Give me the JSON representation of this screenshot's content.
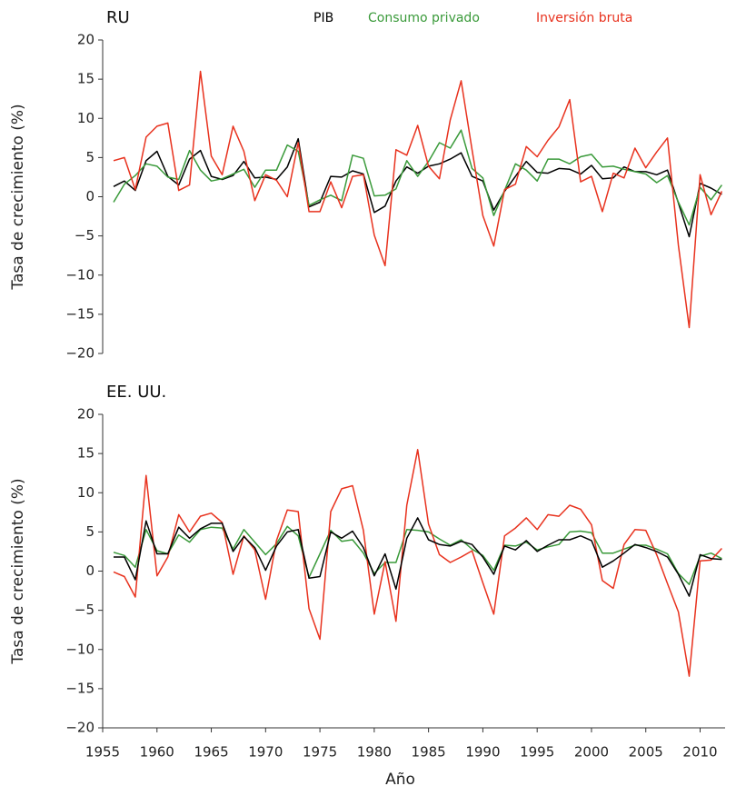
{
  "chart_data": [
    {
      "type": "line",
      "title": "RU",
      "ylabel": "Tasa de crecimiento (%)",
      "x": [
        1956,
        1957,
        1958,
        1959,
        1960,
        1961,
        1962,
        1963,
        1964,
        1965,
        1966,
        1967,
        1968,
        1969,
        1970,
        1971,
        1972,
        1973,
        1974,
        1975,
        1976,
        1977,
        1978,
        1979,
        1980,
        1981,
        1982,
        1983,
        1984,
        1985,
        1986,
        1987,
        1988,
        1989,
        1990,
        1991,
        1992,
        1993,
        1994,
        1995,
        1996,
        1997,
        1998,
        1999,
        2000,
        2001,
        2002,
        2003,
        2004,
        2005,
        2006,
        2007,
        2008,
        2009,
        2010,
        2011,
        2012
      ],
      "series": [
        {
          "name": "PIB",
          "color": "#000000",
          "values": [
            1.3,
            2.0,
            0.8,
            4.6,
            5.8,
            2.6,
            1.5,
            4.8,
            5.9,
            2.6,
            2.2,
            2.7,
            4.5,
            2.4,
            2.5,
            2.2,
            3.8,
            7.4,
            -1.3,
            -0.7,
            2.6,
            2.5,
            3.3,
            2.9,
            -2.0,
            -1.2,
            2.0,
            3.8,
            3.0,
            3.9,
            4.2,
            4.8,
            5.6,
            2.6,
            2.0,
            -1.7,
            0.7,
            2.6,
            4.5,
            3.1,
            3.0,
            3.6,
            3.5,
            2.9,
            4.0,
            2.3,
            2.4,
            3.8,
            3.2,
            3.2,
            2.8,
            3.4,
            -0.8,
            -5.1,
            1.7,
            1.1,
            0.3
          ]
        },
        {
          "name": "Consumo privado",
          "color": "#3a9a3a",
          "values": [
            -0.7,
            1.6,
            2.7,
            4.2,
            3.9,
            2.5,
            2.2,
            5.9,
            3.4,
            2.0,
            2.3,
            2.9,
            3.5,
            1.2,
            3.4,
            3.4,
            6.6,
            5.8,
            -1.1,
            -0.4,
            0.2,
            -0.5,
            5.3,
            4.9,
            0.1,
            0.2,
            1.0,
            4.6,
            2.6,
            4.5,
            6.9,
            6.2,
            8.5,
            3.6,
            2.4,
            -2.4,
            0.8,
            4.2,
            3.4,
            2.0,
            4.8,
            4.8,
            4.2,
            5.1,
            5.4,
            3.8,
            3.9,
            3.5,
            3.2,
            2.9,
            1.8,
            2.7,
            -0.7,
            -3.6,
            1.2,
            -0.4,
            1.5
          ]
        },
        {
          "name": "Inversión bruta",
          "color": "#e8321e",
          "values": [
            4.6,
            5.0,
            0.9,
            7.6,
            9.0,
            9.4,
            0.8,
            1.5,
            16.0,
            5.2,
            2.8,
            9.0,
            5.8,
            -0.5,
            2.8,
            2.1,
            0.0,
            6.9,
            -1.9,
            -1.9,
            1.9,
            -1.4,
            2.6,
            2.8,
            -4.9,
            -8.8,
            6.0,
            5.3,
            9.1,
            3.9,
            2.3,
            9.8,
            14.8,
            6.0,
            -2.4,
            -6.3,
            0.9,
            1.6,
            6.4,
            5.1,
            7.2,
            8.9,
            12.4,
            1.9,
            2.6,
            -1.9,
            3.0,
            2.4,
            6.2,
            3.7,
            5.7,
            7.5,
            -6.2,
            -16.7,
            2.8,
            -2.3,
            0.7
          ]
        }
      ],
      "xlim": [
        1955,
        2012.3
      ],
      "ylim": [
        -20,
        20
      ],
      "yticks": [
        20,
        15,
        10,
        5,
        0,
        {
          "value": -5,
          "label": "−5"
        },
        {
          "value": -10,
          "label": "−10"
        },
        {
          "value": -15,
          "label": "−15"
        },
        {
          "value": -20,
          "label": "−20"
        }
      ]
    },
    {
      "type": "line",
      "title": "EE. UU.",
      "ylabel": "Tasa de crecimiento (%)",
      "xlabel": "Año",
      "x": [
        1956,
        1957,
        1958,
        1959,
        1960,
        1961,
        1962,
        1963,
        1964,
        1965,
        1966,
        1967,
        1968,
        1969,
        1970,
        1971,
        1972,
        1973,
        1974,
        1975,
        1976,
        1977,
        1978,
        1979,
        1980,
        1981,
        1982,
        1983,
        1984,
        1985,
        1986,
        1987,
        1988,
        1989,
        1990,
        1991,
        1992,
        1993,
        1994,
        1995,
        1996,
        1997,
        1998,
        1999,
        2000,
        2001,
        2002,
        2003,
        2004,
        2005,
        2006,
        2007,
        2008,
        2009,
        2010,
        2011,
        2012
      ],
      "series": [
        {
          "color": "#3a9a3a",
          "values": [
            2.4,
            2.0,
            0.5,
            5.3,
            2.6,
            2.2,
            4.6,
            3.7,
            5.3,
            5.6,
            5.5,
            2.8,
            5.3,
            3.7,
            2.1,
            3.5,
            5.7,
            4.5,
            -0.8,
            2.2,
            5.2,
            3.8,
            4.0,
            2.3,
            -0.3,
            1.1,
            1.1,
            5.3,
            5.2,
            5.0,
            4.1,
            3.3,
            4.0,
            2.8,
            2.0,
            0.1,
            3.3,
            3.2,
            3.7,
            2.7,
            3.1,
            3.4,
            5.0,
            5.1,
            4.9,
            2.3,
            2.3,
            2.8,
            3.3,
            3.3,
            2.8,
            2.2,
            -0.3,
            -1.7,
            1.9,
            2.3,
            1.6
          ]
        },
        {
          "color": "#e8321e",
          "values": [
            -0.1,
            -0.7,
            -3.3,
            12.2,
            -0.6,
            1.8,
            7.2,
            5.0,
            7.0,
            7.4,
            6.2,
            -0.4,
            4.5,
            2.7,
            -3.6,
            3.9,
            7.8,
            7.6,
            -4.8,
            -8.7,
            7.6,
            10.5,
            10.9,
            5.2,
            -5.5,
            1.2,
            -6.4,
            8.4,
            15.5,
            6.0,
            2.1,
            1.1,
            1.8,
            2.6,
            -1.5,
            -5.5,
            4.5,
            5.5,
            6.8,
            5.3,
            7.2,
            7.0,
            8.4,
            7.9,
            5.9,
            -1.2,
            -2.2,
            3.4,
            5.3,
            5.2,
            2.1,
            -1.6,
            -5.2,
            -13.4,
            1.3,
            1.4,
            2.9
          ]
        },
        {
          "color": "#000000",
          "values": [
            1.8,
            1.8,
            -1.1,
            6.4,
            2.2,
            2.2,
            5.6,
            4.2,
            5.4,
            6.1,
            6.1,
            2.5,
            4.4,
            3.0,
            0.1,
            3.2,
            5.0,
            5.3,
            -0.9,
            -0.7,
            5.0,
            4.2,
            5.1,
            3.0,
            -0.6,
            2.2,
            -2.3,
            4.2,
            6.8,
            4.0,
            3.4,
            3.2,
            3.8,
            3.4,
            1.8,
            -0.4,
            3.2,
            2.7,
            3.9,
            2.5,
            3.3,
            4.0,
            4.0,
            4.5,
            3.9,
            0.5,
            1.3,
            2.3,
            3.4,
            3.0,
            2.5,
            1.8,
            -0.4,
            -3.2,
            2.1,
            1.6,
            1.5
          ]
        }
      ],
      "xlim": [
        1955,
        2012.3
      ],
      "ylim": [
        -20,
        20
      ],
      "yticks": [
        20,
        15,
        10,
        5,
        0,
        {
          "value": -5,
          "label": "−5"
        },
        {
          "value": -10,
          "label": "−10"
        },
        {
          "value": -15,
          "label": "−15"
        },
        {
          "value": -20,
          "label": "−20"
        }
      ],
      "xticks": [
        1955,
        1960,
        1965,
        1970,
        1975,
        1980,
        1985,
        1990,
        1995,
        2000,
        2005,
        2010
      ]
    }
  ]
}
